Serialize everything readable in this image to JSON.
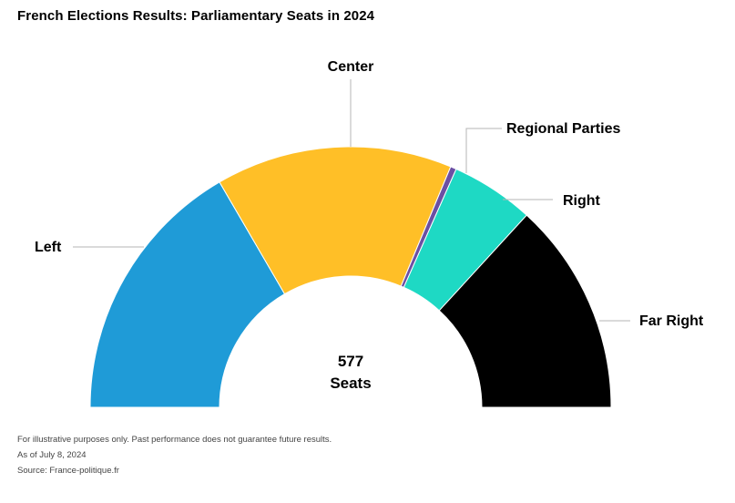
{
  "title": "French Elections Results: Parliamentary Seats in 2024",
  "chart_data": {
    "type": "pie",
    "subtype": "half-donut (parliament)",
    "title": "French Elections Results: Parliamentary Seats in 2024",
    "total_label": "577",
    "total_unit": "Seats",
    "total": 577,
    "slices": [
      {
        "label": "Left",
        "value": 180,
        "color": "#1f9bd7"
      },
      {
        "label": "Center",
        "value": 159,
        "color": "#ffbf27"
      },
      {
        "label": "Regional Parties",
        "value": 4,
        "color": "#6b4fa3"
      },
      {
        "label": "Right",
        "value": 56,
        "color": "#1ed9c4"
      },
      {
        "label": "Far Right",
        "value": 143,
        "color": "#000000"
      }
    ]
  },
  "footnotes": {
    "disclaimer": "For illustrative purposes only. Past performance does not guarantee future results.",
    "date": "As of July 8, 2024",
    "source": "Source: France-politique.fr"
  }
}
